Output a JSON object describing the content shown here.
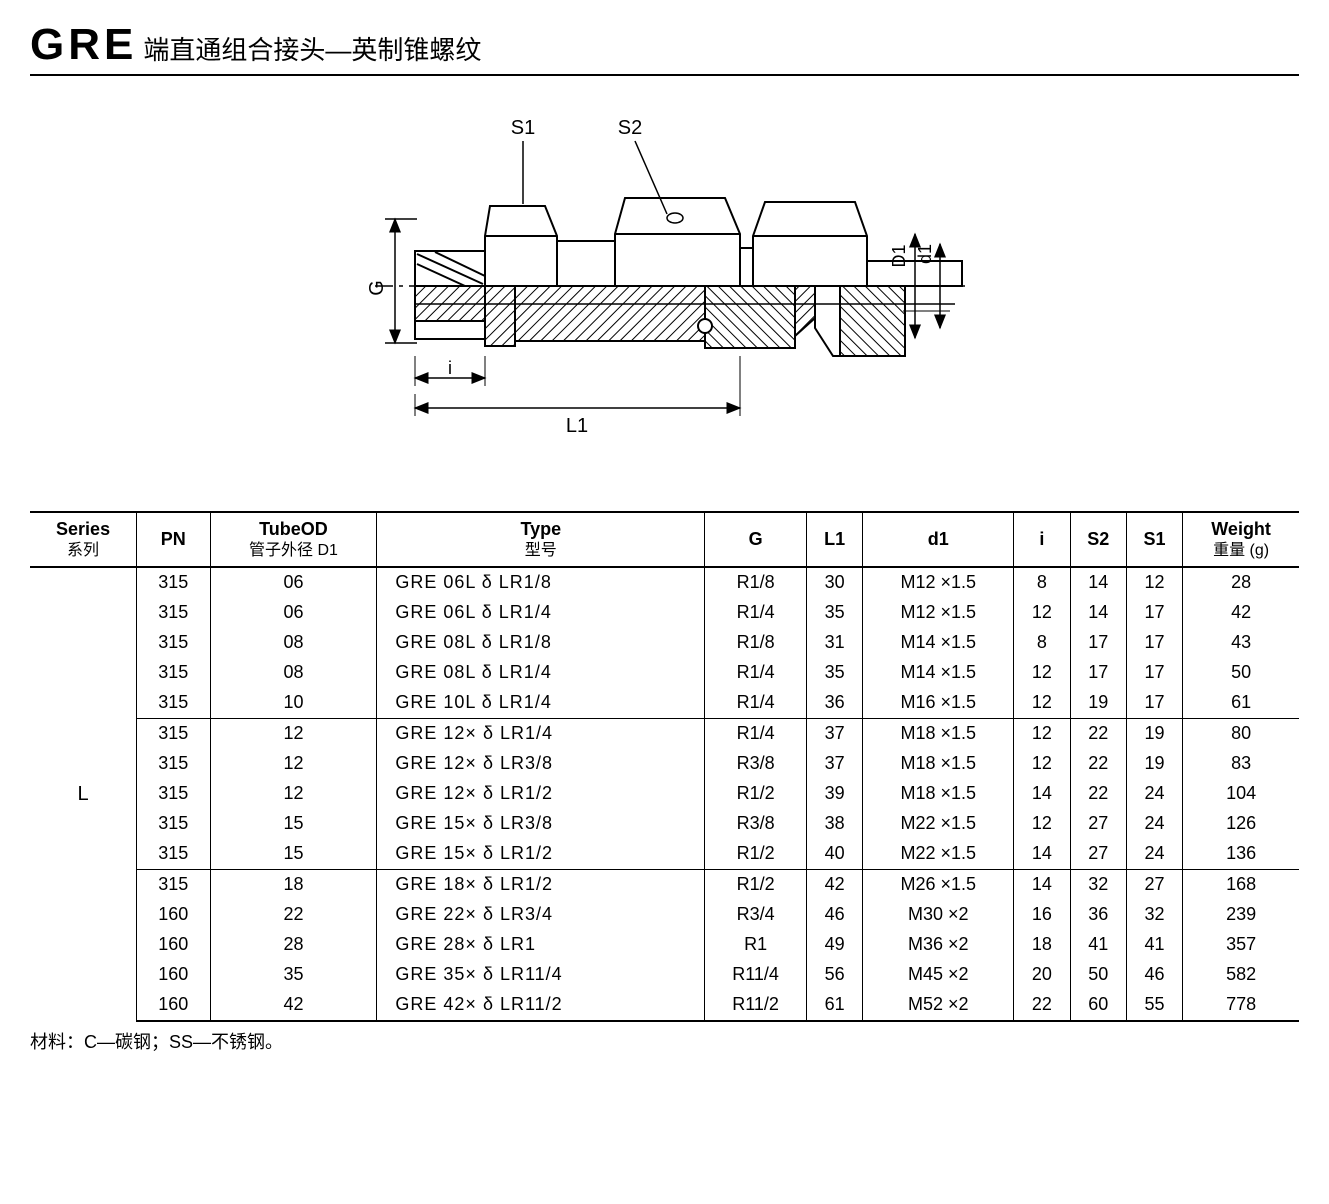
{
  "title": {
    "code": "GRE",
    "desc": "端直通组合接头—英制锥螺纹"
  },
  "diagram": {
    "labels": {
      "S1": "S1",
      "S2": "S2",
      "G": "G",
      "D1": "D1",
      "d1": "d1",
      "i": "i",
      "L1": "L1"
    },
    "stroke": "#000000",
    "hatch": "#000000",
    "bg": "#ffffff"
  },
  "table": {
    "columns": [
      {
        "key": "series",
        "label": "Series",
        "sub": "系列"
      },
      {
        "key": "pn",
        "label": "PN",
        "sub": ""
      },
      {
        "key": "d1cap",
        "label": "TubeOD",
        "sub": "管子外径 D1"
      },
      {
        "key": "type",
        "label": "Type",
        "sub": "型号"
      },
      {
        "key": "g",
        "label": "G",
        "sub": ""
      },
      {
        "key": "l1",
        "label": "L1",
        "sub": ""
      },
      {
        "key": "d1low",
        "label": "d1",
        "sub": ""
      },
      {
        "key": "i",
        "label": "i",
        "sub": ""
      },
      {
        "key": "s2",
        "label": "S2",
        "sub": ""
      },
      {
        "key": "s1",
        "label": "S1",
        "sub": ""
      },
      {
        "key": "wt",
        "label": "Weight",
        "sub": "重量 (g)"
      }
    ],
    "series_label": "L",
    "rows": [
      {
        "pn": "315",
        "D1": "06",
        "type": "GRE 06L δ LR1/8",
        "G": "R1/8",
        "L1": "30",
        "d1": "M12 ×1.5",
        "i": "8",
        "S2": "14",
        "S1": "12",
        "wt": "28",
        "sep": false
      },
      {
        "pn": "315",
        "D1": "06",
        "type": "GRE 06L δ LR1/4",
        "G": "R1/4",
        "L1": "35",
        "d1": "M12 ×1.5",
        "i": "12",
        "S2": "14",
        "S1": "17",
        "wt": "42",
        "sep": false
      },
      {
        "pn": "315",
        "D1": "08",
        "type": "GRE 08L δ LR1/8",
        "G": "R1/8",
        "L1": "31",
        "d1": "M14 ×1.5",
        "i": "8",
        "S2": "17",
        "S1": "17",
        "wt": "43",
        "sep": false
      },
      {
        "pn": "315",
        "D1": "08",
        "type": "GRE 08L δ LR1/4",
        "G": "R1/4",
        "L1": "35",
        "d1": "M14 ×1.5",
        "i": "12",
        "S2": "17",
        "S1": "17",
        "wt": "50",
        "sep": false
      },
      {
        "pn": "315",
        "D1": "10",
        "type": "GRE 10L δ LR1/4",
        "G": "R1/4",
        "L1": "36",
        "d1": "M16 ×1.5",
        "i": "12",
        "S2": "19",
        "S1": "17",
        "wt": "61",
        "sep": false
      },
      {
        "pn": "315",
        "D1": "12",
        "type": "GRE 12× δ LR1/4",
        "G": "R1/4",
        "L1": "37",
        "d1": "M18 ×1.5",
        "i": "12",
        "S2": "22",
        "S1": "19",
        "wt": "80",
        "sep": true
      },
      {
        "pn": "315",
        "D1": "12",
        "type": "GRE 12× δ LR3/8",
        "G": "R3/8",
        "L1": "37",
        "d1": "M18 ×1.5",
        "i": "12",
        "S2": "22",
        "S1": "19",
        "wt": "83",
        "sep": false
      },
      {
        "pn": "315",
        "D1": "12",
        "type": "GRE 12× δ LR1/2",
        "G": "R1/2",
        "L1": "39",
        "d1": "M18 ×1.5",
        "i": "14",
        "S2": "22",
        "S1": "24",
        "wt": "104",
        "sep": false
      },
      {
        "pn": "315",
        "D1": "15",
        "type": "GRE 15× δ LR3/8",
        "G": "R3/8",
        "L1": "38",
        "d1": "M22 ×1.5",
        "i": "12",
        "S2": "27",
        "S1": "24",
        "wt": "126",
        "sep": false
      },
      {
        "pn": "315",
        "D1": "15",
        "type": "GRE 15× δ LR1/2",
        "G": "R1/2",
        "L1": "40",
        "d1": "M22 ×1.5",
        "i": "14",
        "S2": "27",
        "S1": "24",
        "wt": "136",
        "sep": false
      },
      {
        "pn": "315",
        "D1": "18",
        "type": "GRE 18× δ LR1/2",
        "G": "R1/2",
        "L1": "42",
        "d1": "M26 ×1.5",
        "i": "14",
        "S2": "32",
        "S1": "27",
        "wt": "168",
        "sep": true
      },
      {
        "pn": "160",
        "D1": "22",
        "type": "GRE 22× δ LR3/4",
        "G": "R3/4",
        "L1": "46",
        "d1": "M30 ×2",
        "i": "16",
        "S2": "36",
        "S1": "32",
        "wt": "239",
        "sep": false
      },
      {
        "pn": "160",
        "D1": "28",
        "type": "GRE 28× δ LR1",
        "G": "R1",
        "L1": "49",
        "d1": "M36 ×2",
        "i": "18",
        "S2": "41",
        "S1": "41",
        "wt": "357",
        "sep": false
      },
      {
        "pn": "160",
        "D1": "35",
        "type": "GRE 35× δ LR11/4",
        "G": "R11/4",
        "L1": "56",
        "d1": "M45 ×2",
        "i": "20",
        "S2": "50",
        "S1": "46",
        "wt": "582",
        "sep": false
      },
      {
        "pn": "160",
        "D1": "42",
        "type": "GRE 42× δ LR11/2",
        "G": "R11/2",
        "L1": "61",
        "d1": "M52 ×2",
        "i": "22",
        "S2": "60",
        "S1": "55",
        "wt": "778",
        "sep": false
      }
    ]
  },
  "footnote": "材料：C—碳钢；SS—不锈钢。"
}
